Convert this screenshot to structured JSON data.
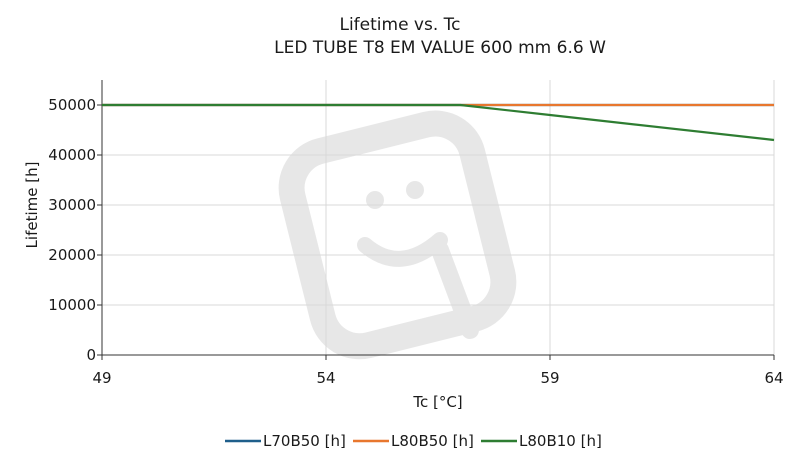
{
  "chart_data": {
    "type": "line",
    "title": "Lifetime vs. Tc",
    "subtitle": "LED TUBE T8 EM VALUE 600 mm 6.6 W",
    "xlabel": "Tc [°C]",
    "ylabel": "Lifetime [h]",
    "xlim": [
      49,
      64
    ],
    "ylim": [
      0,
      55000
    ],
    "x_ticks": [
      49,
      54,
      59,
      64
    ],
    "y_ticks": [
      0,
      10000,
      20000,
      30000,
      40000,
      50000
    ],
    "grid": true,
    "legend_position": "bottom",
    "series": [
      {
        "name": "L70B50 [h]",
        "color": "#1f5f8b",
        "points": [
          [
            49,
            50000
          ],
          [
            57,
            50000
          ],
          [
            64,
            50000
          ]
        ]
      },
      {
        "name": "L80B50 [h]",
        "color": "#e8772e",
        "points": [
          [
            49,
            50000
          ],
          [
            57,
            50000
          ],
          [
            64,
            50000
          ]
        ]
      },
      {
        "name": "L80B10 [h]",
        "color": "#2e7d32",
        "points": [
          [
            49,
            50000
          ],
          [
            57,
            50000
          ],
          [
            59,
            48000
          ],
          [
            64,
            43000
          ]
        ]
      }
    ]
  }
}
